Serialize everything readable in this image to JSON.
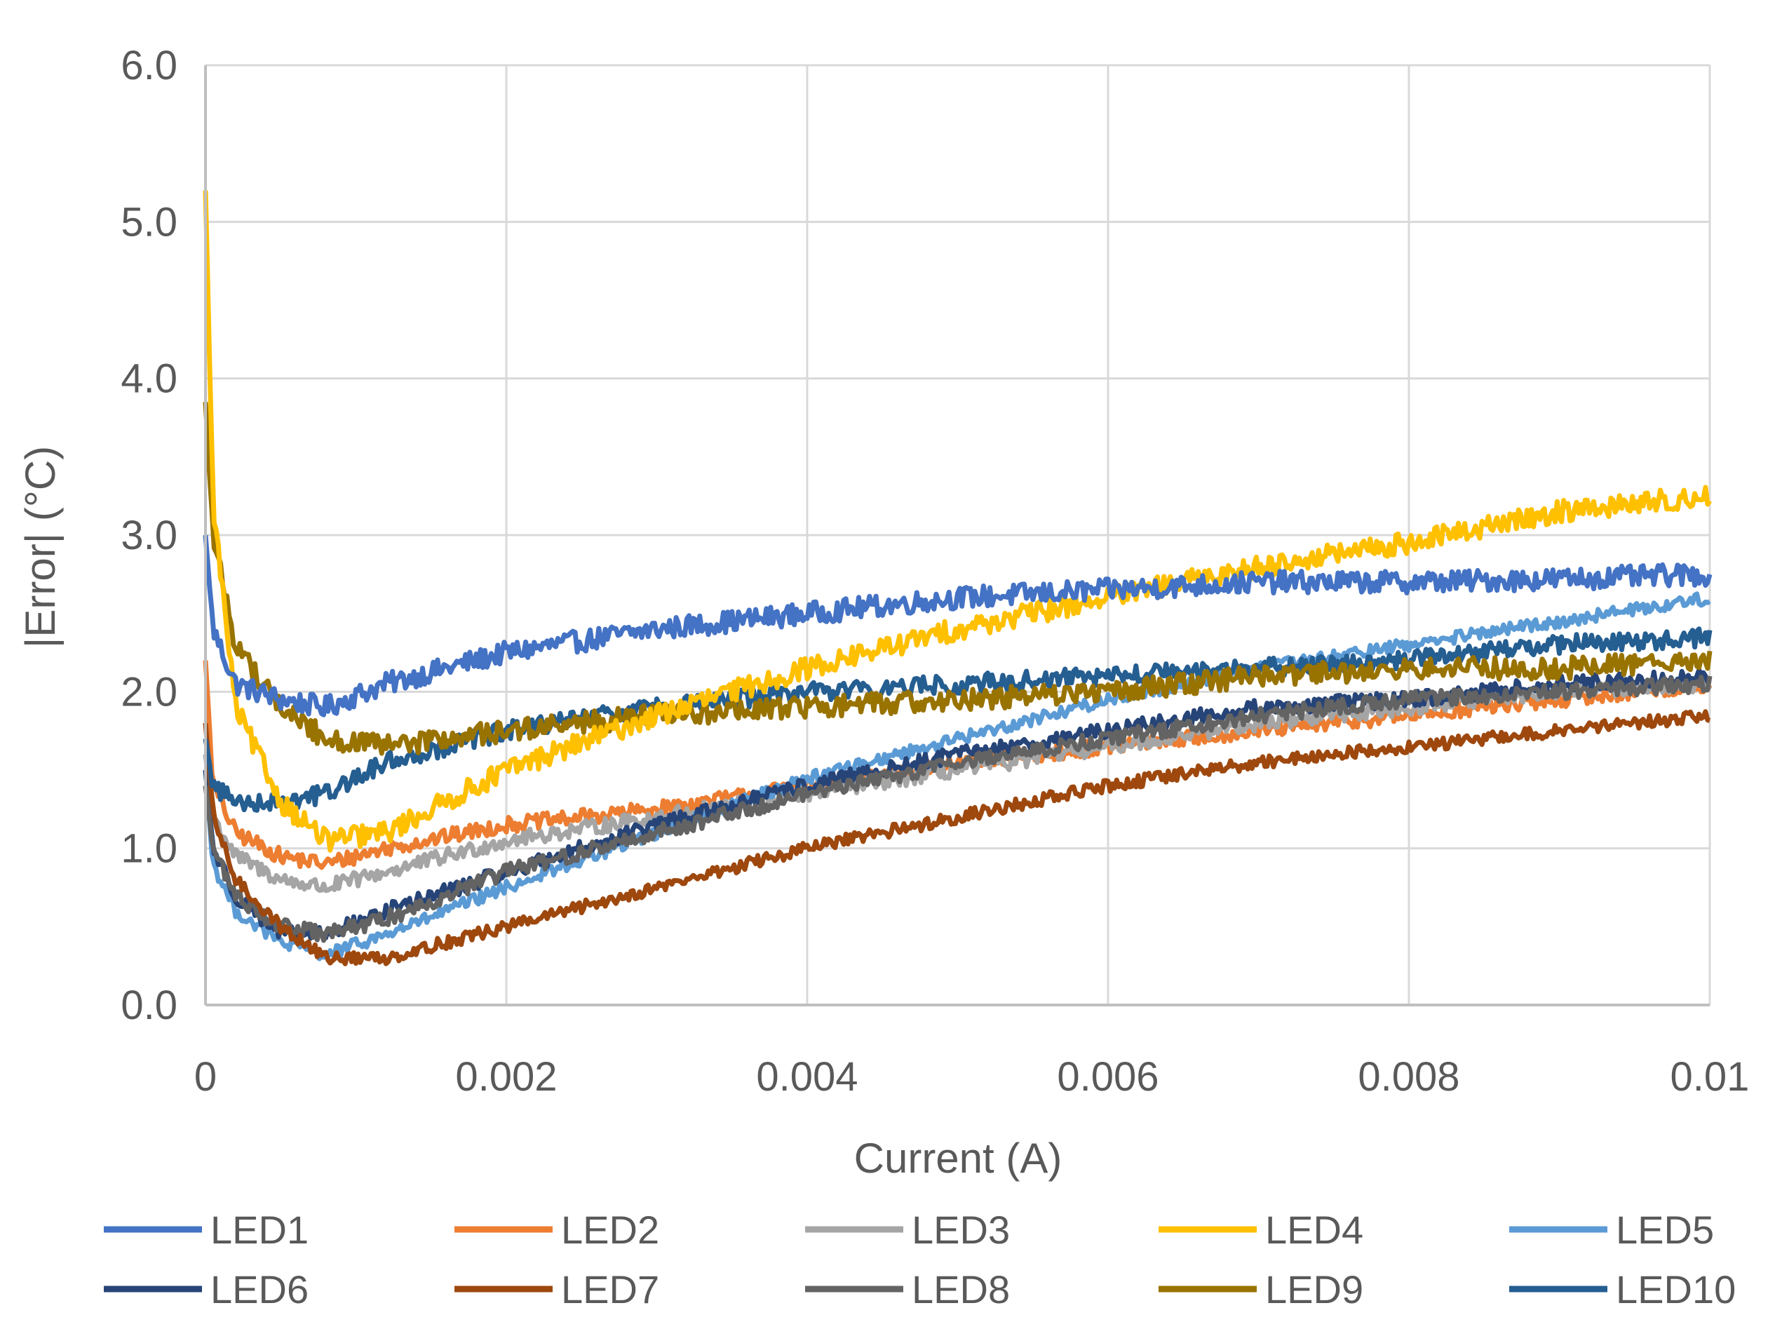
{
  "chart_data": {
    "type": "line",
    "title": "",
    "xlabel": "Current (A)",
    "ylabel": "|Error| (°C)",
    "xlim": [
      0,
      0.01
    ],
    "ylim": [
      0,
      6
    ],
    "x_ticks": [
      0,
      0.002,
      0.004,
      0.006,
      0.008,
      0.01
    ],
    "x_tick_labels": [
      "0",
      "0.002",
      "0.004",
      "0.006",
      "0.008",
      "0.01"
    ],
    "y_ticks": [
      0,
      1,
      2,
      3,
      4,
      5,
      6
    ],
    "y_tick_labels": [
      "0.0",
      "1.0",
      "2.0",
      "3.0",
      "4.0",
      "5.0",
      "6.0"
    ],
    "grid": true,
    "legend_position": "bottom",
    "x": [
      0,
      5e-05,
      0.0002,
      0.0005,
      0.0008,
      0.0012,
      0.002,
      0.003,
      0.004,
      0.005,
      0.006,
      0.007,
      0.008,
      0.009,
      0.01
    ],
    "series": [
      {
        "name": "LED1",
        "color": "#4472C4",
        "noise": 0.07,
        "values": [
          3.0,
          2.4,
          2.05,
          1.95,
          1.9,
          2.05,
          2.25,
          2.4,
          2.5,
          2.6,
          2.65,
          2.7,
          2.7,
          2.72,
          2.75
        ]
      },
      {
        "name": "LED2",
        "color": "#ED7D31",
        "noise": 0.05,
        "values": [
          2.2,
          1.4,
          1.1,
          0.95,
          0.9,
          1.0,
          1.15,
          1.25,
          1.4,
          1.55,
          1.65,
          1.75,
          1.85,
          1.95,
          2.05
        ]
      },
      {
        "name": "LED3",
        "color": "#A5A5A5",
        "noise": 0.05,
        "values": [
          1.6,
          1.2,
          0.95,
          0.8,
          0.75,
          0.85,
          1.05,
          1.2,
          1.35,
          1.5,
          1.65,
          1.8,
          1.9,
          2.0,
          2.05
        ]
      },
      {
        "name": "LED4",
        "color": "#FFC000",
        "noise": 0.07,
        "values": [
          5.2,
          3.2,
          1.9,
          1.3,
          1.05,
          1.1,
          1.5,
          1.85,
          2.15,
          2.4,
          2.6,
          2.8,
          2.95,
          3.15,
          3.25
        ]
      },
      {
        "name": "LED5",
        "color": "#5B9BD5",
        "noise": 0.04,
        "values": [
          1.5,
          0.9,
          0.6,
          0.4,
          0.32,
          0.45,
          0.75,
          1.1,
          1.45,
          1.7,
          1.95,
          2.15,
          2.3,
          2.45,
          2.6
        ]
      },
      {
        "name": "LED6",
        "color": "#264478",
        "noise": 0.05,
        "values": [
          1.5,
          1.0,
          0.7,
          0.45,
          0.45,
          0.6,
          0.85,
          1.15,
          1.4,
          1.6,
          1.75,
          1.9,
          1.95,
          2.05,
          2.1
        ]
      },
      {
        "name": "LED7",
        "color": "#9E480E",
        "noise": 0.04,
        "values": [
          1.8,
          1.2,
          0.8,
          0.5,
          0.3,
          0.3,
          0.5,
          0.75,
          1.0,
          1.2,
          1.4,
          1.55,
          1.65,
          1.75,
          1.85
        ]
      },
      {
        "name": "LED8",
        "color": "#636363",
        "noise": 0.05,
        "values": [
          1.4,
          1.0,
          0.7,
          0.5,
          0.45,
          0.55,
          0.85,
          1.1,
          1.35,
          1.55,
          1.7,
          1.85,
          1.95,
          2.0,
          2.05
        ]
      },
      {
        "name": "LED9",
        "color": "#997300",
        "noise": 0.07,
        "values": [
          3.85,
          3.0,
          2.3,
          1.9,
          1.7,
          1.65,
          1.75,
          1.85,
          1.9,
          1.95,
          2.0,
          2.1,
          2.15,
          2.15,
          2.2
        ]
      },
      {
        "name": "LED10",
        "color": "#255E91",
        "noise": 0.06,
        "values": [
          1.7,
          1.4,
          1.3,
          1.3,
          1.35,
          1.55,
          1.75,
          1.9,
          2.0,
          2.05,
          2.1,
          2.15,
          2.2,
          2.3,
          2.35
        ]
      }
    ]
  }
}
